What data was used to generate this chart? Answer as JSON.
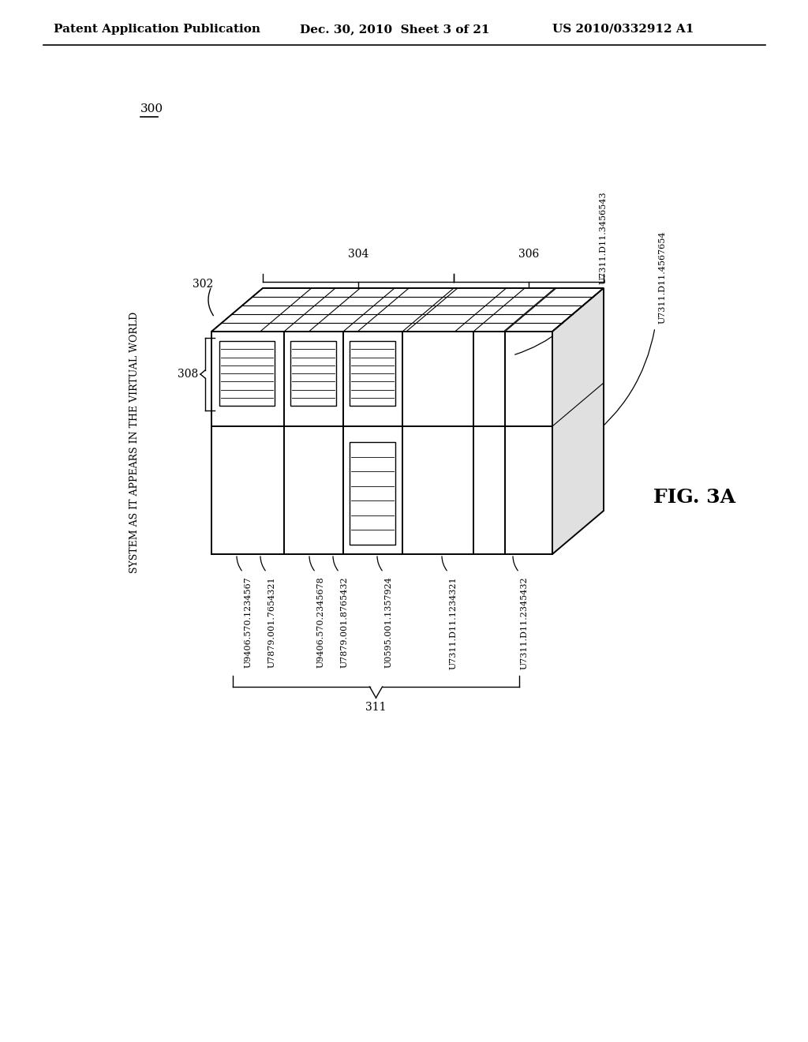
{
  "bg_color": "#ffffff",
  "header_left": "Patent Application Publication",
  "header_mid": "Dec. 30, 2010  Sheet 3 of 21",
  "header_right": "US 2010/0332912 A1",
  "fig_label": "FIG. 3A",
  "ref_300": "300",
  "ref_302": "302",
  "ref_304": "304",
  "ref_306": "306",
  "ref_308": "308",
  "ref_311": "311",
  "side_label": "SYSTEM AS IT APPEARS IN THE VIRTUAL WORLD",
  "bottom_labels": [
    "U9406.570.1234567",
    "U7879.001.7654321",
    "U9406.570.2345678",
    "U7879.001.8765432",
    "U0595.001.1357924",
    "U7311.D11.1234321",
    "U7311.D11.2345432"
  ],
  "right_labels_top": [
    "U7311.D11.3456543",
    "U7311.D11.4567654"
  ],
  "lw_main": 1.4,
  "lw_thin": 0.8
}
